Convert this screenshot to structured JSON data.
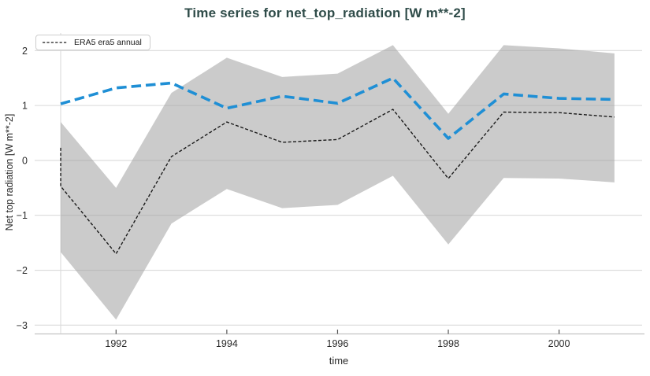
{
  "title": "Time series for net_top_radiation [W m**-2]",
  "legend": {
    "items": [
      {
        "label": "ERA5 era5 annual",
        "line_style": "black-dashed"
      }
    ]
  },
  "colors": {
    "title_text": "#2f4c49",
    "blue_line": "#1f8fd5",
    "black_line": "#1a1a1a",
    "band_fill": "#cbcbcb",
    "gridline": "#dadada",
    "axis_line": "#c2c2c2",
    "tick_mark": "#555555",
    "tick_text": "#2a2a2a"
  },
  "chart_data": {
    "type": "line",
    "title": "Time series for net_top_radiation [W m**-2]",
    "xlabel": "time",
    "ylabel": "Net top radiation [W m**-2]",
    "xlim": [
      1990.53,
      2001.5
    ],
    "ylim": [
      -3.16,
      2.32
    ],
    "x_ticks": [
      1992,
      1994,
      1996,
      1998,
      2000
    ],
    "x_tick_labels": [
      "1992",
      "1994",
      "1996",
      "1998",
      "2000"
    ],
    "y_ticks": [
      2,
      1,
      0,
      -1,
      -2,
      -3
    ],
    "y_tick_labels": [
      "2",
      "1",
      "0",
      "−1",
      "−2",
      "−3"
    ],
    "grid": "horizontal",
    "vline_x": 1991,
    "legend_position": "top-left",
    "series": [
      {
        "name": "ERA5 era5 annual",
        "color": "#1a1a1a",
        "style": "dashed-thin",
        "in_legend": true,
        "points": [
          [
            1991,
            0.23
          ],
          [
            1991,
            -0.47
          ],
          [
            1992,
            -1.7
          ],
          [
            1993,
            0.07
          ],
          [
            1994,
            0.7
          ],
          [
            1995,
            0.33
          ],
          [
            1996,
            0.38
          ],
          [
            1997,
            0.93
          ],
          [
            1998,
            -0.33
          ],
          [
            1999,
            0.88
          ],
          [
            2000,
            0.87
          ],
          [
            2001,
            0.79
          ]
        ]
      },
      {
        "name": "(unlabeled blue series)",
        "color": "#1f8fd5",
        "style": "dashed-bold",
        "in_legend": false,
        "points": [
          [
            1991,
            1.03
          ],
          [
            1992,
            1.32
          ],
          [
            1993,
            1.41
          ],
          [
            1994,
            0.95
          ],
          [
            1995,
            1.17
          ],
          [
            1996,
            1.04
          ],
          [
            1997,
            1.5
          ],
          [
            1998,
            0.4
          ],
          [
            1999,
            1.21
          ],
          [
            2000,
            1.13
          ],
          [
            2001,
            1.11
          ]
        ]
      }
    ],
    "band": {
      "name": "uncertainty band around ERA5 era5 annual",
      "color": "#cbcbcb",
      "x": [
        1991,
        1992,
        1993,
        1994,
        1995,
        1996,
        1997,
        1998,
        1999,
        2000,
        2001
      ],
      "upper": [
        0.7,
        -0.5,
        1.23,
        1.87,
        1.52,
        1.58,
        2.1,
        0.85,
        2.1,
        2.04,
        1.95
      ],
      "lower": [
        -1.67,
        -2.9,
        -1.15,
        -0.52,
        -0.87,
        -0.81,
        -0.28,
        -1.53,
        -0.32,
        -0.33,
        -0.4
      ]
    }
  }
}
